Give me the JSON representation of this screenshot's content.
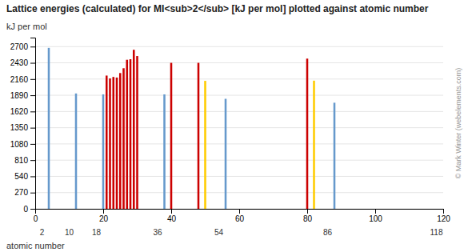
{
  "chart_data": {
    "type": "bar",
    "title": "Lattice energies (calculated) for MI<sub>2</sub> [kJ per mol] plotted against atomic number",
    "y_label": "kJ per mol",
    "x_label": "atomic number",
    "x": [
      4,
      12,
      20,
      21,
      22,
      23,
      24,
      25,
      26,
      27,
      28,
      29,
      30,
      38,
      40,
      48,
      50,
      56,
      80,
      82,
      88
    ],
    "values": [
      2679,
      1920,
      1905,
      2218,
      2170,
      2195,
      2185,
      2260,
      2340,
      2481,
      2490,
      2647,
      2543,
      1905,
      2430,
      2430,
      2130,
      1831,
      2500,
      2133,
      1766
    ],
    "colors": [
      "#6699cc",
      "#6699cc",
      "#6699cc",
      "#cc0000",
      "#cc0000",
      "#cc0000",
      "#cc0000",
      "#cc0000",
      "#cc0000",
      "#cc0000",
      "#cc0000",
      "#cc0000",
      "#cc0000",
      "#6699cc",
      "#cc0000",
      "#cc0000",
      "#ffcc00",
      "#6699cc",
      "#cc0000",
      "#ffcc00",
      "#6699cc"
    ],
    "xlim": [
      0,
      120
    ],
    "xticks": [
      0,
      20,
      40,
      60,
      80,
      100,
      120
    ],
    "ylim": [
      0,
      2850
    ],
    "yticks": [
      0,
      270,
      540,
      810,
      1080,
      1350,
      1620,
      1890,
      2160,
      2430,
      2700
    ],
    "annotations": [
      {
        "x": 2,
        "text": "2"
      },
      {
        "x": 10,
        "text": "10"
      },
      {
        "x": 18,
        "text": "18"
      },
      {
        "x": 36,
        "text": "36"
      },
      {
        "x": 54,
        "text": "54"
      },
      {
        "x": 86,
        "text": "86"
      },
      {
        "x": 118,
        "text": "118"
      }
    ],
    "source": "© Mark Winter (webelements.com)",
    "grid": true
  }
}
